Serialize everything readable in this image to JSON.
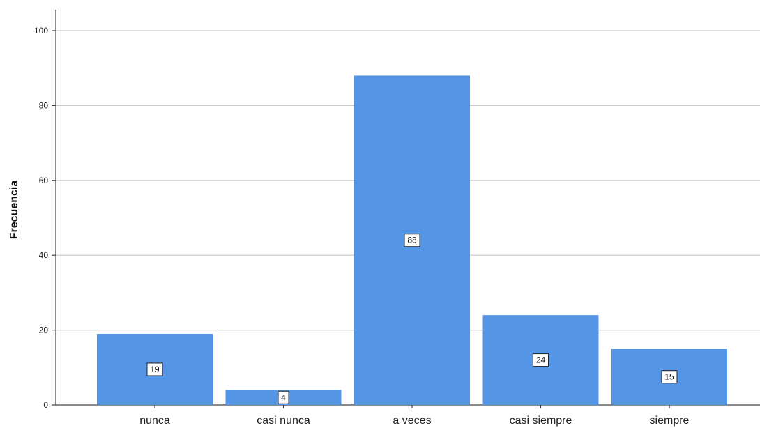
{
  "chart_data": {
    "type": "bar",
    "categories": [
      "nunca",
      "casi nunca",
      "a veces",
      "casi siempre",
      "siempre"
    ],
    "values": [
      19,
      4,
      88,
      24,
      15
    ],
    "data_labels": [
      "19",
      "4",
      "88",
      "24",
      "15"
    ],
    "title": "",
    "xlabel": "",
    "ylabel": "Frecuencia",
    "ylim": [
      0,
      100
    ],
    "yticks": [
      0,
      20,
      40,
      60,
      80,
      100
    ],
    "ytick_labels": [
      "0",
      "20",
      "40",
      "60",
      "80",
      "100"
    ],
    "grid": true,
    "bar_color": "#5595e5",
    "grid_color": "#c9c9c9"
  }
}
